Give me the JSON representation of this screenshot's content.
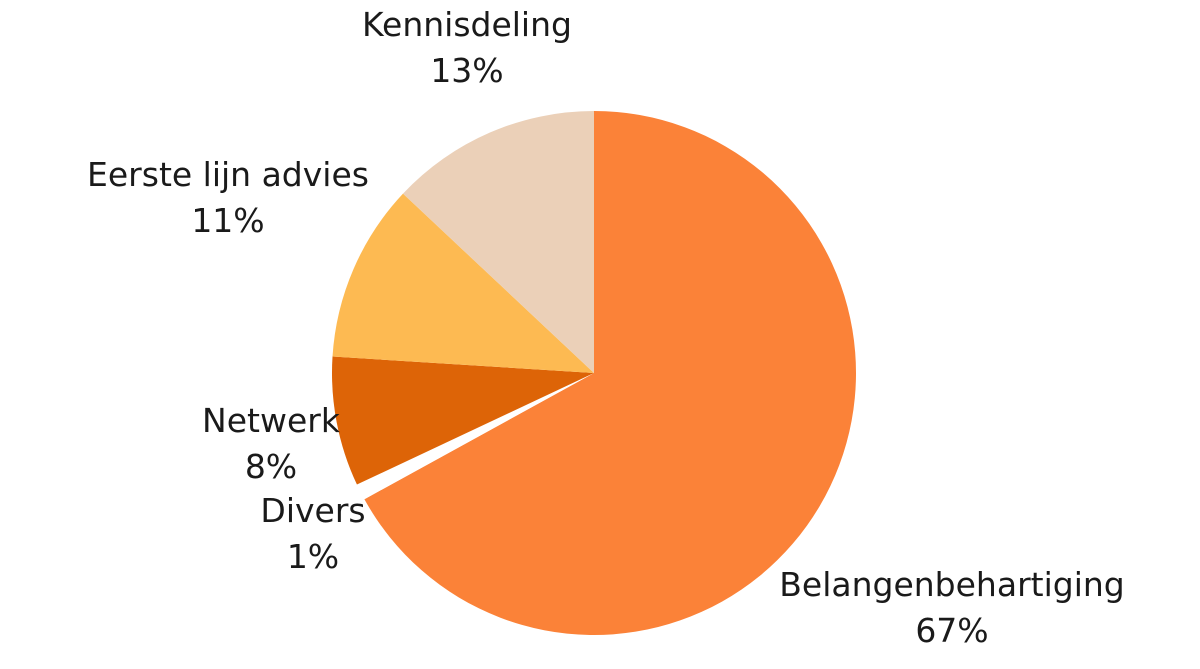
{
  "chart_data": {
    "type": "pie",
    "title": "",
    "slices": [
      {
        "label": "Belangenbehartiging",
        "value": 67,
        "value_label": "67%",
        "color": "#FB8238"
      },
      {
        "label": "Divers",
        "value": 1,
        "value_label": "1%",
        "color": "#FFFFFF"
      },
      {
        "label": "Netwerk",
        "value": 8,
        "value_label": "8%",
        "color": "#DD6407"
      },
      {
        "label": "Eerste lijn advies",
        "value": 11,
        "value_label": "11%",
        "color": "#FDBA52"
      },
      {
        "label": "Kennisdeling",
        "value": 13,
        "value_label": "13%",
        "color": "#EBD0B8"
      }
    ],
    "start_angle": "12 o'clock",
    "direction": "clockwise",
    "legend": "none",
    "labels": "outside, name above percentage"
  }
}
